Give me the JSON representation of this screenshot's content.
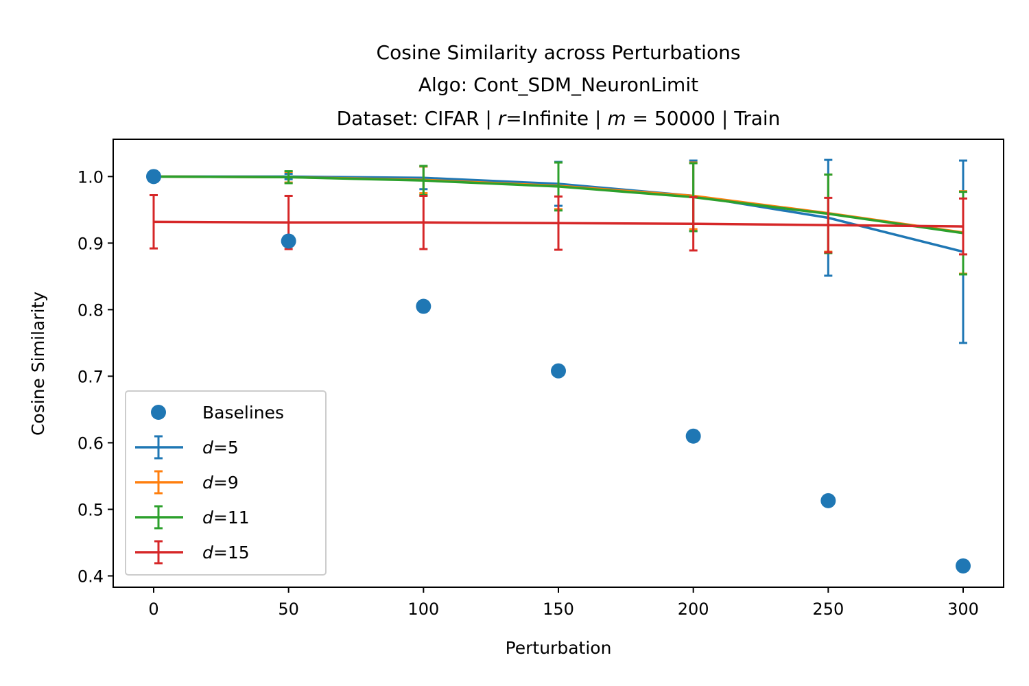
{
  "chart_data": {
    "type": "line",
    "title_lines": [
      "Cosine Similarity across Perturbations",
      "Algo: Cont_SDM_NeuronLimit"
    ],
    "title_line3": {
      "prefix": "Dataset: CIFAR | ",
      "r_symbol": "r",
      "r_value": "=Infinite | ",
      "m_symbol": "m",
      "m_value": " = 50000 | Train"
    },
    "xlabel": "Perturbation",
    "ylabel": "Cosine Similarity",
    "xlim": [
      -15,
      315
    ],
    "ylim": [
      0.383,
      1.056
    ],
    "xticks": [
      0,
      50,
      100,
      150,
      200,
      250,
      300
    ],
    "yticks": [
      0.4,
      0.5,
      0.6,
      0.7,
      0.8,
      0.9,
      1.0
    ],
    "ytick_labels": [
      "0.4",
      "0.5",
      "0.6",
      "0.7",
      "0.8",
      "0.9",
      "1.0"
    ],
    "legend_position": "lower-left",
    "x": [
      0,
      50,
      100,
      150,
      200,
      250,
      300
    ],
    "baselines": {
      "name": "Baselines",
      "color": "#1f77b4",
      "values": [
        1.0,
        0.903,
        0.805,
        0.708,
        0.61,
        0.513,
        0.415
      ]
    },
    "series": [
      {
        "name_symbol": "d",
        "name_value": "=5",
        "color": "#1f77b4",
        "values": [
          1.0,
          1.0,
          0.998,
          0.989,
          0.971,
          0.938,
          0.887
        ],
        "errors": [
          0.0,
          0.004,
          0.017,
          0.033,
          0.053,
          0.087,
          0.137
        ]
      },
      {
        "name_symbol": "d",
        "name_value": "=9",
        "color": "#ff7f0e",
        "values": [
          1.0,
          0.999,
          0.995,
          0.986,
          0.971,
          0.945,
          0.916
        ],
        "errors": [
          0.0,
          0.008,
          0.02,
          0.035,
          0.05,
          0.058,
          0.062
        ]
      },
      {
        "name_symbol": "d",
        "name_value": "=11",
        "color": "#2ca02c",
        "values": [
          1.0,
          0.999,
          0.994,
          0.985,
          0.969,
          0.944,
          0.915
        ],
        "errors": [
          0.0,
          0.009,
          0.022,
          0.036,
          0.051,
          0.059,
          0.062
        ]
      },
      {
        "name_symbol": "d",
        "name_value": "=15",
        "color": "#d62728",
        "values": [
          0.932,
          0.931,
          0.931,
          0.93,
          0.929,
          0.927,
          0.925
        ],
        "errors": [
          0.04,
          0.04,
          0.04,
          0.04,
          0.04,
          0.041,
          0.042
        ]
      }
    ]
  }
}
